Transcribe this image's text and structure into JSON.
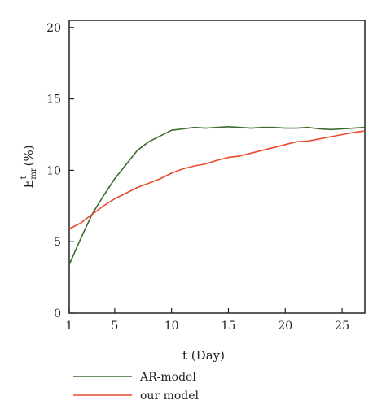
{
  "chart_data": {
    "type": "line",
    "xlabel": "t (Day)",
    "ylabel": {
      "base": "E",
      "sup": "t",
      "sub": "mr",
      "unit": "(%)"
    },
    "xlim": [
      1,
      27
    ],
    "ylim": [
      0,
      20.5
    ],
    "xticks": [
      1,
      5,
      10,
      15,
      20,
      25
    ],
    "yticks": [
      0,
      5,
      10,
      15,
      20
    ],
    "grid": false,
    "legend_position": "bottom-left",
    "series": [
      {
        "name": "AR-model",
        "color": "#3a6b2a",
        "x": [
          1,
          2,
          3,
          4,
          5,
          6,
          7,
          8,
          9,
          10,
          11,
          12,
          13,
          14,
          15,
          16,
          17,
          18,
          19,
          20,
          21,
          22,
          23,
          24,
          25,
          26,
          27
        ],
        "y": [
          3.4,
          5.2,
          6.9,
          8.2,
          9.4,
          10.4,
          11.4,
          12.0,
          12.4,
          12.8,
          12.9,
          13.0,
          12.95,
          13.0,
          13.05,
          13.0,
          12.95,
          13.0,
          13.0,
          12.95,
          12.95,
          13.0,
          12.9,
          12.85,
          12.9,
          12.95,
          13.0
        ]
      },
      {
        "name": "our model",
        "color": "#e84a2a",
        "x": [
          1,
          2,
          3,
          4,
          5,
          6,
          7,
          8,
          9,
          10,
          11,
          12,
          13,
          14,
          15,
          16,
          17,
          18,
          19,
          20,
          21,
          22,
          23,
          24,
          25,
          26,
          27
        ],
        "y": [
          5.9,
          6.3,
          6.9,
          7.5,
          8.0,
          8.4,
          8.8,
          9.1,
          9.4,
          9.8,
          10.1,
          10.3,
          10.45,
          10.7,
          10.9,
          11.0,
          11.2,
          11.4,
          11.6,
          11.8,
          12.0,
          12.05,
          12.2,
          12.35,
          12.5,
          12.65,
          12.75
        ]
      }
    ]
  }
}
